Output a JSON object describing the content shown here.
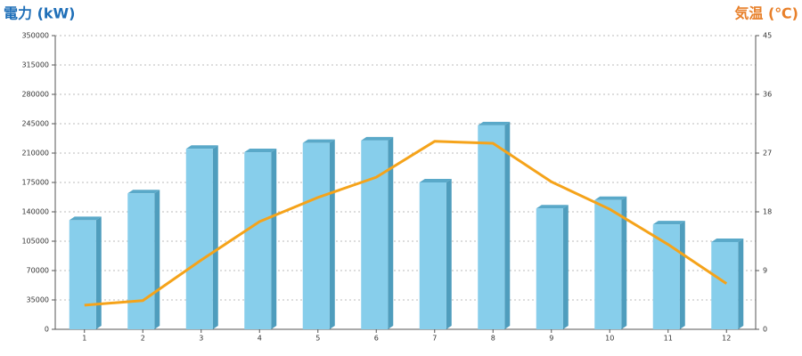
{
  "chart_data": {
    "type": "bar",
    "ylabel": "電力 (kW)",
    "y2label": "気温 (℃)",
    "categories": [
      "1",
      "2",
      "3",
      "4",
      "5",
      "6",
      "7",
      "8",
      "9",
      "10",
      "11",
      "12"
    ],
    "series": [
      {
        "type": "bar",
        "color": "#87ceeb",
        "values": [
          130000,
          162000,
          215000,
          211000,
          222000,
          225000,
          175000,
          243000,
          144000,
          154000,
          125000,
          104000
        ]
      },
      {
        "type": "line",
        "axis": "y2",
        "color": "#f5a31a",
        "values": [
          3.7,
          4.4,
          10.6,
          16.5,
          20.2,
          23.3,
          28.8,
          28.5,
          22.6,
          18.4,
          13.0,
          7.0
        ]
      }
    ],
    "ylim": [
      0,
      350000
    ],
    "yticks": [
      0,
      35000,
      70000,
      105000,
      140000,
      175000,
      210000,
      245000,
      280000,
      315000,
      350000
    ],
    "y2lim": [
      0,
      45
    ],
    "y2ticks": [
      0,
      9,
      18,
      27,
      36,
      45
    ],
    "grid": true
  }
}
